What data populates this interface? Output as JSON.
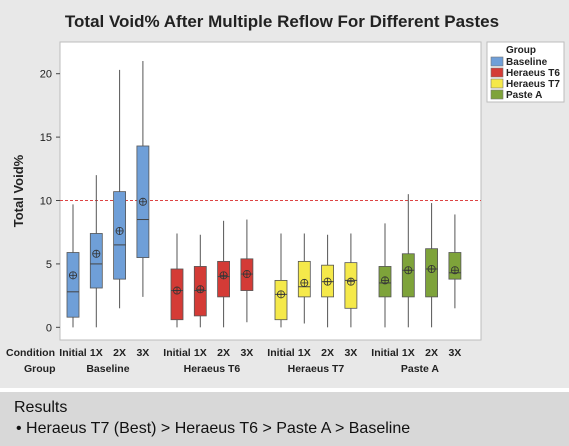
{
  "chart_data": {
    "type": "boxplot",
    "title": "Total Void% After Multiple Reflow For Different Pastes",
    "ylabel": "Total Void%",
    "ylim": [
      -1,
      22.5
    ],
    "yticks": [
      0,
      5,
      10,
      15,
      20
    ],
    "reference_line": 10,
    "row_labels": {
      "condition": "Condition",
      "group": "Group"
    },
    "legend": {
      "title": "Group",
      "position": "right",
      "entries": [
        {
          "name": "Baseline",
          "color": "#6f9fd8"
        },
        {
          "name": "Heraeus T6",
          "color": "#d43b36"
        },
        {
          "name": "Heraeus T7",
          "color": "#f5e94a"
        },
        {
          "name": "Paste A",
          "color": "#7ea33a"
        }
      ]
    },
    "groups": [
      {
        "name": "Baseline",
        "color": "#6f9fd8",
        "boxes": [
          {
            "condition": "Initial",
            "min": 0,
            "q1": 0.8,
            "median": 2.8,
            "mean": 4.1,
            "q3": 5.9,
            "max": 9.7
          },
          {
            "condition": "1X",
            "min": 0,
            "q1": 3.1,
            "median": 5.0,
            "mean": 5.8,
            "q3": 7.4,
            "max": 12.0
          },
          {
            "condition": "2X",
            "min": 1.5,
            "q1": 3.8,
            "median": 6.5,
            "mean": 7.6,
            "q3": 10.7,
            "max": 20.3
          },
          {
            "condition": "3X",
            "min": 2.4,
            "q1": 5.5,
            "median": 8.5,
            "mean": 9.9,
            "q3": 14.3,
            "max": 21.0
          }
        ]
      },
      {
        "name": "Heraeus T6",
        "color": "#d43b36",
        "boxes": [
          {
            "condition": "Initial",
            "min": 0,
            "q1": 0.6,
            "median": 2.9,
            "mean": 2.9,
            "q3": 4.6,
            "max": 7.4
          },
          {
            "condition": "1X",
            "min": 0,
            "q1": 0.9,
            "median": 2.9,
            "mean": 3.0,
            "q3": 4.8,
            "max": 7.3
          },
          {
            "condition": "2X",
            "min": 0,
            "q1": 2.4,
            "median": 4.0,
            "mean": 4.1,
            "q3": 5.2,
            "max": 8.4
          },
          {
            "condition": "3X",
            "min": 0.4,
            "q1": 2.9,
            "median": 4.2,
            "mean": 4.2,
            "q3": 5.4,
            "max": 8.5
          }
        ]
      },
      {
        "name": "Heraeus T7",
        "color": "#f5e94a",
        "boxes": [
          {
            "condition": "Initial",
            "min": 0,
            "q1": 0.6,
            "median": 2.6,
            "mean": 2.6,
            "q3": 3.7,
            "max": 7.4
          },
          {
            "condition": "1X",
            "min": 0.3,
            "q1": 2.4,
            "median": 3.2,
            "mean": 3.5,
            "q3": 5.2,
            "max": 7.4
          },
          {
            "condition": "2X",
            "min": 0,
            "q1": 2.4,
            "median": 3.6,
            "mean": 3.6,
            "q3": 4.9,
            "max": 7.3
          },
          {
            "condition": "3X",
            "min": 0,
            "q1": 1.5,
            "median": 3.7,
            "mean": 3.6,
            "q3": 5.1,
            "max": 7.4
          }
        ]
      },
      {
        "name": "Paste A",
        "color": "#7ea33a",
        "boxes": [
          {
            "condition": "Initial",
            "min": 0,
            "q1": 2.4,
            "median": 3.5,
            "mean": 3.7,
            "q3": 4.8,
            "max": 8.2
          },
          {
            "condition": "1X",
            "min": 0,
            "q1": 2.4,
            "median": 4.5,
            "mean": 4.5,
            "q3": 5.8,
            "max": 10.5
          },
          {
            "condition": "2X",
            "min": 0,
            "q1": 2.4,
            "median": 4.6,
            "mean": 4.6,
            "q3": 6.2,
            "max": 9.8
          },
          {
            "condition": "3X",
            "min": 1.5,
            "q1": 3.8,
            "median": 4.3,
            "mean": 4.5,
            "q3": 5.9,
            "max": 8.9
          }
        ]
      }
    ]
  },
  "results": {
    "heading": "Results",
    "bullet": "•  Heraeus T7 (Best) > Heraeus T6 > Paste A > Baseline"
  }
}
